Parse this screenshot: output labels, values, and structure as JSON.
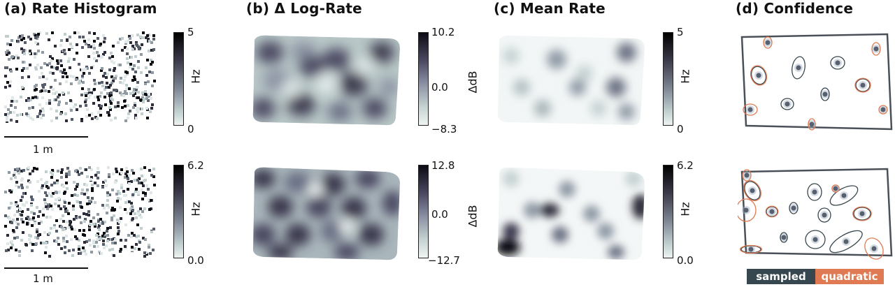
{
  "panels": {
    "a": {
      "title": "(a) Rate Histogram",
      "cbar_top": [
        "5",
        "0"
      ],
      "cbar_bottom": [
        "6.2",
        "0.0"
      ],
      "unit": "Hz",
      "scale": "1 m"
    },
    "b": {
      "title": "(b) Δ Log-Rate",
      "cbar_top": [
        "10.2",
        "0.0",
        "−8.3"
      ],
      "cbar_bottom": [
        "12.8",
        "0.0",
        "−12.7"
      ],
      "unit": "ΔdB"
    },
    "c": {
      "title": "(c) Mean Rate",
      "cbar_top": [
        "5",
        "0"
      ],
      "cbar_bottom": [
        "6.2",
        "0.0"
      ],
      "unit": "Hz"
    },
    "d": {
      "title": "(d) Confidence"
    }
  },
  "legend": {
    "sampled": "sampled",
    "quadratic": "quadratic"
  },
  "colors": {
    "sampled": "#37474f",
    "quadratic": "#e07a52"
  }
}
